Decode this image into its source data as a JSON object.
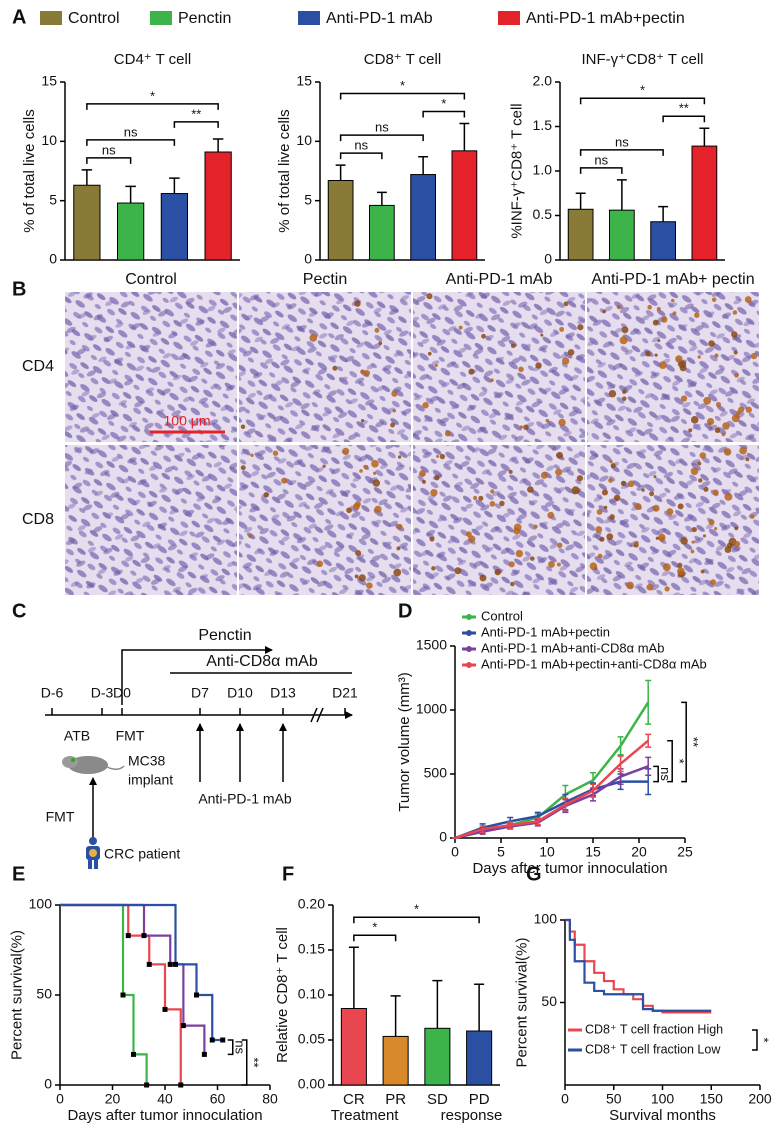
{
  "panel_labels": [
    "A",
    "B",
    "C",
    "D",
    "E",
    "F",
    "G"
  ],
  "legend": [
    {
      "name": "Control",
      "color": "#8a7a38"
    },
    {
      "name": "Penctin",
      "color": "#3cb44a"
    },
    {
      "name": "Anti-PD-1 mAb",
      "color": "#2a4fa3"
    },
    {
      "name": "Anti-PD-1 mAb+pectin",
      "color": "#e3222a"
    }
  ],
  "images": {
    "columns": [
      "Control",
      "Pectin",
      "Anti-PD-1 mAb",
      "Anti-PD-1 mAb+ pectin"
    ],
    "rows": [
      "CD4",
      "CD8"
    ],
    "scale_bar": "100 μm"
  },
  "schematic": {
    "penctin": "Penctin",
    "anti_cd8": "Anti-CD8α  mAb",
    "days": [
      "D-6",
      "D-3",
      "D0",
      "D7",
      "D10",
      "D13",
      "D21"
    ],
    "atb": "ATB",
    "fmt_window": "FMT",
    "implant": [
      "MC38",
      "implant"
    ],
    "anti_pd1": "Anti-PD-1 mAb",
    "fmt": "FMT",
    "patient": "CRC patient"
  },
  "chart_data": [
    {
      "type": "bar",
      "title": "CD4⁺ T cell",
      "ylabel": "% of total live cells",
      "values": [
        6.3,
        4.8,
        5.6,
        9.1
      ],
      "errors": [
        1.3,
        1.4,
        1.3,
        1.1
      ],
      "ylim": [
        0,
        15
      ],
      "yticks": [
        0,
        5,
        10,
        15
      ],
      "brackets": [
        {
          "from": 0,
          "to": 1,
          "label": "ns"
        },
        {
          "from": 0,
          "to": 2,
          "label": "ns"
        },
        {
          "from": 2,
          "to": 3,
          "label": "**"
        },
        {
          "from": 0,
          "to": 3,
          "label": "*"
        }
      ]
    },
    {
      "type": "bar",
      "title": "CD8⁺ T cell",
      "ylabel": "% of total live cells",
      "values": [
        6.7,
        4.6,
        7.2,
        9.2
      ],
      "errors": [
        1.3,
        1.1,
        1.5,
        2.3
      ],
      "ylim": [
        0,
        15
      ],
      "yticks": [
        0,
        5,
        10,
        15
      ],
      "brackets": [
        {
          "from": 0,
          "to": 1,
          "label": "ns"
        },
        {
          "from": 0,
          "to": 2,
          "label": "ns"
        },
        {
          "from": 2,
          "to": 3,
          "label": "*"
        },
        {
          "from": 0,
          "to": 3,
          "label": "*"
        }
      ]
    },
    {
      "type": "bar",
      "title": "INF-γ⁺CD8⁺ T cell",
      "ylabel": "%INF-γ⁺CD8⁺ T cell",
      "values": [
        0.57,
        0.56,
        0.43,
        1.28
      ],
      "errors": [
        0.18,
        0.34,
        0.17,
        0.2
      ],
      "ylim": [
        0,
        2
      ],
      "yticks": [
        0,
        0.5,
        {
          "value": 1,
          "label": "1.0"
        },
        1.5,
        {
          "value": 2,
          "label": "2.0"
        }
      ],
      "brackets": [
        {
          "from": 0,
          "to": 1,
          "label": "ns"
        },
        {
          "from": 0,
          "to": 2,
          "label": "ns"
        },
        {
          "from": 2,
          "to": 3,
          "label": "**"
        },
        {
          "from": 0,
          "to": 3,
          "label": "*"
        }
      ]
    },
    {
      "type": "line",
      "ylabel": "Tumor volume (mm³)",
      "xlabel": "Days after tumor innoculation",
      "x": [
        0,
        3,
        6,
        9,
        12,
        15,
        18,
        21
      ],
      "series": [
        {
          "name": "Control",
          "color": "#3cb44a",
          "values": [
            0,
            60,
            100,
            160,
            340,
            450,
            720,
            1060
          ],
          "errors": [
            0,
            20,
            25,
            30,
            70,
            60,
            70,
            170
          ]
        },
        {
          "name": "Anti-PD-1 mAb+pectin",
          "color": "#2a4fa3",
          "values": [
            0,
            80,
            130,
            170,
            280,
            380,
            440,
            440
          ],
          "errors": [
            0,
            30,
            30,
            30,
            60,
            50,
            60,
            100
          ]
        },
        {
          "name": "Anti-PD-1 mAb+anti-CD8α mAb",
          "color": "#7b3f9e",
          "values": [
            0,
            50,
            90,
            120,
            250,
            340,
            480,
            560
          ],
          "errors": [
            0,
            20,
            20,
            25,
            50,
            50,
            60,
            70
          ]
        },
        {
          "name": "Anti-PD-1 mAb+pectin+anti-CD8α mAb",
          "color": "#e8474f",
          "values": [
            0,
            70,
            100,
            130,
            260,
            370,
            580,
            760
          ],
          "errors": [
            0,
            25,
            25,
            25,
            50,
            50,
            60,
            50
          ]
        }
      ],
      "xlim": [
        0,
        25
      ],
      "xticks": [
        0,
        5,
        10,
        15,
        20,
        25
      ],
      "ylim": [
        0,
        1500
      ],
      "yticks": [
        0,
        500,
        1000,
        1500
      ],
      "legend": "upper left",
      "brackets": [
        {
          "from": 1,
          "to": 2,
          "label": "ns"
        },
        {
          "from": 1,
          "to": 3,
          "label": "*"
        },
        {
          "from": 1,
          "to": 0,
          "label": "**"
        }
      ]
    },
    {
      "type": "step",
      "ylabel": "Percent survival(%)",
      "xlabel": "Days after tumor innoculation",
      "series": [
        {
          "color": "#3cb44a",
          "x": [
            0,
            24,
            28,
            33
          ],
          "values": [
            100,
            50,
            17,
            0
          ]
        },
        {
          "color": "#e8474f",
          "x": [
            0,
            26,
            34,
            40,
            46
          ],
          "values": [
            100,
            83,
            67,
            42,
            0
          ]
        },
        {
          "color": "#7b3f9e",
          "x": [
            0,
            32,
            42,
            47,
            55
          ],
          "values": [
            100,
            83,
            67,
            33,
            17
          ]
        },
        {
          "color": "#2a4fa3",
          "x": [
            0,
            44,
            52,
            58,
            62
          ],
          "values": [
            100,
            67,
            50,
            25,
            25
          ]
        }
      ],
      "markers": true,
      "xlim": [
        0,
        80
      ],
      "xticks": [
        0,
        20,
        40,
        60,
        80
      ],
      "ylim": [
        0,
        100
      ],
      "yticks": [
        0,
        50,
        100
      ],
      "brackets": [
        {
          "from": 3,
          "to": 2,
          "label": "ns"
        },
        {
          "from": 3,
          "to": 1,
          "label": "**"
        }
      ]
    },
    {
      "type": "bar",
      "ylabel": "Relative CD8⁺ T cell",
      "xlabel": "Treatment response",
      "categories": [
        "CR",
        "PR",
        "SD",
        "PD"
      ],
      "values": [
        0.085,
        0.054,
        0.063,
        0.06
      ],
      "errors": [
        0.068,
        0.045,
        0.053,
        0.052
      ],
      "colors": [
        "#e8474f",
        "#d8892a",
        "#3cb44a",
        "#2a4fa3"
      ],
      "ylim": [
        0,
        0.2
      ],
      "yticks": [
        {
          "value": 0,
          "label": "0.00"
        },
        0.05,
        {
          "value": 0.1,
          "label": "0.10"
        },
        0.15,
        {
          "value": 0.2,
          "label": "0.20"
        }
      ],
      "brackets": [
        {
          "from": 0,
          "to": 1,
          "label": "*"
        },
        {
          "from": 0,
          "to": 3,
          "label": "*"
        }
      ]
    },
    {
      "type": "step",
      "ylabel": "Percent survival(%)",
      "xlabel": "Survival months",
      "series": [
        {
          "name": "CD8⁺ T cell fraction High",
          "color": "#e8474f",
          "x": [
            0,
            5,
            10,
            20,
            30,
            40,
            50,
            60,
            70,
            80,
            90,
            100,
            150
          ],
          "values": [
            100,
            93,
            85,
            75,
            68,
            63,
            58,
            55,
            52,
            48,
            45,
            44,
            44
          ]
        },
        {
          "name": "CD8⁺ T cell fraction Low",
          "color": "#2a4fa3",
          "x": [
            0,
            5,
            10,
            20,
            30,
            40,
            50,
            60,
            70,
            80,
            90,
            100,
            150
          ],
          "values": [
            100,
            88,
            75,
            62,
            57,
            55,
            55,
            55,
            55,
            46,
            45,
            45,
            45
          ]
        }
      ],
      "xlim": [
        0,
        200
      ],
      "xticks": [
        0,
        50,
        100,
        150,
        200
      ],
      "ylim": [
        0,
        100
      ],
      "yticks": [
        50,
        100
      ],
      "legend": "lower left",
      "brackets": [
        {
          "from": 0,
          "to": 1,
          "label": "*"
        }
      ]
    }
  ]
}
